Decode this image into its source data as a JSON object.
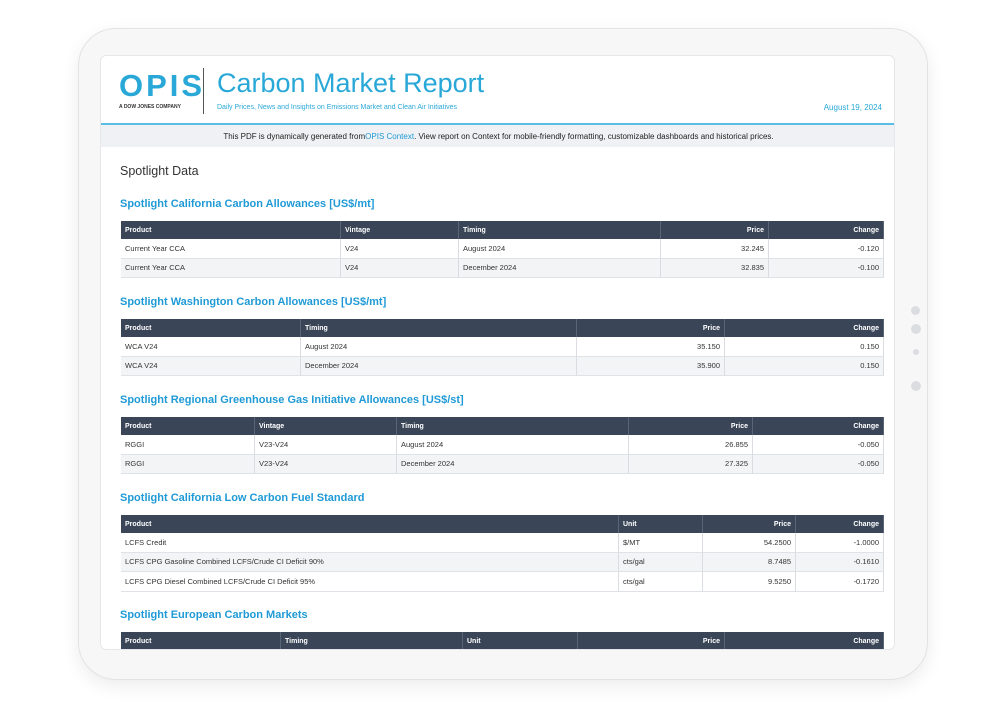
{
  "header": {
    "logo": "OPIS",
    "logo_tagline": "A DOW JONES COMPANY",
    "title": "Carbon Market Report",
    "subtitle": "Daily Prices, News and Insights on Emissions Market and Clean Air Initiatives",
    "date": "August 19, 2024"
  },
  "notice": {
    "before": "This PDF is dynamically generated from ",
    "link": "OPIS Context",
    "after": ". View report on Context for mobile-friendly formatting, customizable dashboards and historical prices."
  },
  "section_title": "Spotlight Data",
  "tables": [
    {
      "title": "Spotlight California Carbon Allowances [US$/mt]",
      "columns": [
        "Product",
        "Vintage",
        "Timing",
        "Price",
        "Change"
      ],
      "rows": [
        [
          "Current Year CCA",
          "V24",
          "August 2024",
          "32.245",
          "-0.120"
        ],
        [
          "Current Year CCA",
          "V24",
          "December 2024",
          "32.835",
          "-0.100"
        ]
      ]
    },
    {
      "title": "Spotlight Washington Carbon Allowances [US$/mt]",
      "columns": [
        "Product",
        "Timing",
        "Price",
        "Change"
      ],
      "rows": [
        [
          "WCA V24",
          "August 2024",
          "35.150",
          "0.150"
        ],
        [
          "WCA V24",
          "December 2024",
          "35.900",
          "0.150"
        ]
      ]
    },
    {
      "title": "Spotlight Regional Greenhouse Gas Initiative Allowances [US$/st]",
      "columns": [
        "Product",
        "Vintage",
        "Timing",
        "Price",
        "Change"
      ],
      "rows": [
        [
          "RGGI",
          "V23-V24",
          "August 2024",
          "26.855",
          "-0.050"
        ],
        [
          "RGGI",
          "V23-V24",
          "December 2024",
          "27.325",
          "-0.050"
        ]
      ]
    },
    {
      "title": "Spotlight California Low Carbon Fuel Standard",
      "columns": [
        "Product",
        "Unit",
        "Price",
        "Change"
      ],
      "rows": [
        [
          "LCFS Credit",
          "$/MT",
          "54.2500",
          "-1.0000"
        ],
        [
          "LCFS CPG Gasoline Combined LCFS/Crude CI Deficit 90%",
          "cts/gal",
          "8.7485",
          "-0.1610"
        ],
        [
          "LCFS CPG Diesel Combined LCFS/Crude CI Deficit 95%",
          "cts/gal",
          "9.5250",
          "-0.1720"
        ]
      ]
    },
    {
      "title": "Spotlight European Carbon Markets",
      "columns": [
        "Product",
        "Timing",
        "Unit",
        "Price",
        "Change"
      ],
      "rows": []
    }
  ]
}
